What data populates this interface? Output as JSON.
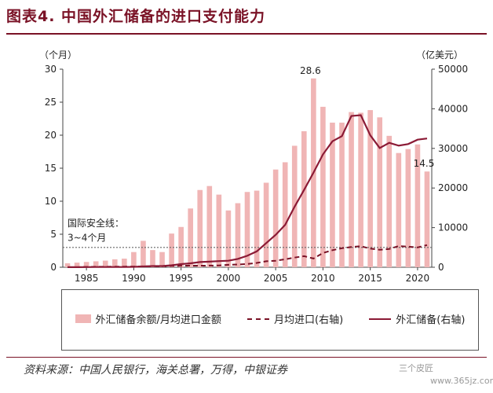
{
  "title": "图表4. 中国外汇储备的进口支付能力",
  "source": "资料来源：中国人民银行，海关总署，万得，中银证券",
  "watermark": "三个皮匠",
  "watermark2": "www.365jz.com",
  "colors": {
    "bar": "#f0b5b5",
    "line": "#8b1a35",
    "dash": "#7a1226",
    "title": "#7a1226"
  },
  "chart_data": {
    "type": "bar+line",
    "left_axis_unit": "（个月）",
    "right_axis_unit": "（亿美元）",
    "y_left_range": [
      0,
      30
    ],
    "y_left_ticks": [
      0,
      5,
      10,
      15,
      20,
      25,
      30
    ],
    "y_right_range": [
      0,
      50000
    ],
    "y_right_ticks": [
      0,
      10000,
      20000,
      30000,
      40000,
      50000
    ],
    "x_ticks": [
      1985,
      1990,
      1995,
      2000,
      2005,
      2010,
      2015,
      2020
    ],
    "x": [
      1983,
      1984,
      1985,
      1986,
      1987,
      1988,
      1989,
      1990,
      1991,
      1992,
      1993,
      1994,
      1995,
      1996,
      1997,
      1998,
      1999,
      2000,
      2001,
      2002,
      2003,
      2004,
      2005,
      2006,
      2007,
      2008,
      2009,
      2010,
      2011,
      2012,
      2013,
      2014,
      2015,
      2016,
      2017,
      2018,
      2019,
      2020,
      2021
    ],
    "series": [
      {
        "name": "外汇储备余额/月均进口金额",
        "kind": "bar",
        "values": [
          0.6,
          0.7,
          0.8,
          0.9,
          1.0,
          1.2,
          1.3,
          2.3,
          4.0,
          2.6,
          2.3,
          5.1,
          6.1,
          8.9,
          11.7,
          12.3,
          11.0,
          8.6,
          9.7,
          11.4,
          11.6,
          12.8,
          14.8,
          15.9,
          18.4,
          20.6,
          28.6,
          24.3,
          21.9,
          21.9,
          23.5,
          23.4,
          23.8,
          22.7,
          19.9,
          17.3,
          17.9,
          18.6,
          14.5
        ]
      },
      {
        "name": "月均进口(右轴)",
        "kind": "dashed-line",
        "values": [
          0,
          0,
          100,
          110,
          120,
          150,
          160,
          180,
          220,
          230,
          260,
          320,
          370,
          390,
          400,
          420,
          460,
          620,
          700,
          820,
          1100,
          1500,
          1650,
          2000,
          2450,
          2800,
          2200,
          3600,
          4300,
          4800,
          5100,
          5300,
          4700,
          4400,
          4600,
          5350,
          5200,
          5000,
          5600
        ]
      },
      {
        "name": "外汇储备(右轴)",
        "kind": "line",
        "values": [
          10,
          20,
          30,
          50,
          50,
          50,
          50,
          100,
          200,
          300,
          300,
          500,
          800,
          1000,
          1300,
          1400,
          1550,
          1650,
          2100,
          2900,
          4000,
          6100,
          8200,
          10700,
          15300,
          19500,
          23900,
          28500,
          31800,
          33100,
          38200,
          38400,
          33300,
          30100,
          31400,
          30700,
          31100,
          32200,
          32500
        ]
      }
    ],
    "annotations": [
      "28.6",
      "14.5",
      "国际安全线：",
      "3~4个月"
    ],
    "safety_line": 3
  }
}
